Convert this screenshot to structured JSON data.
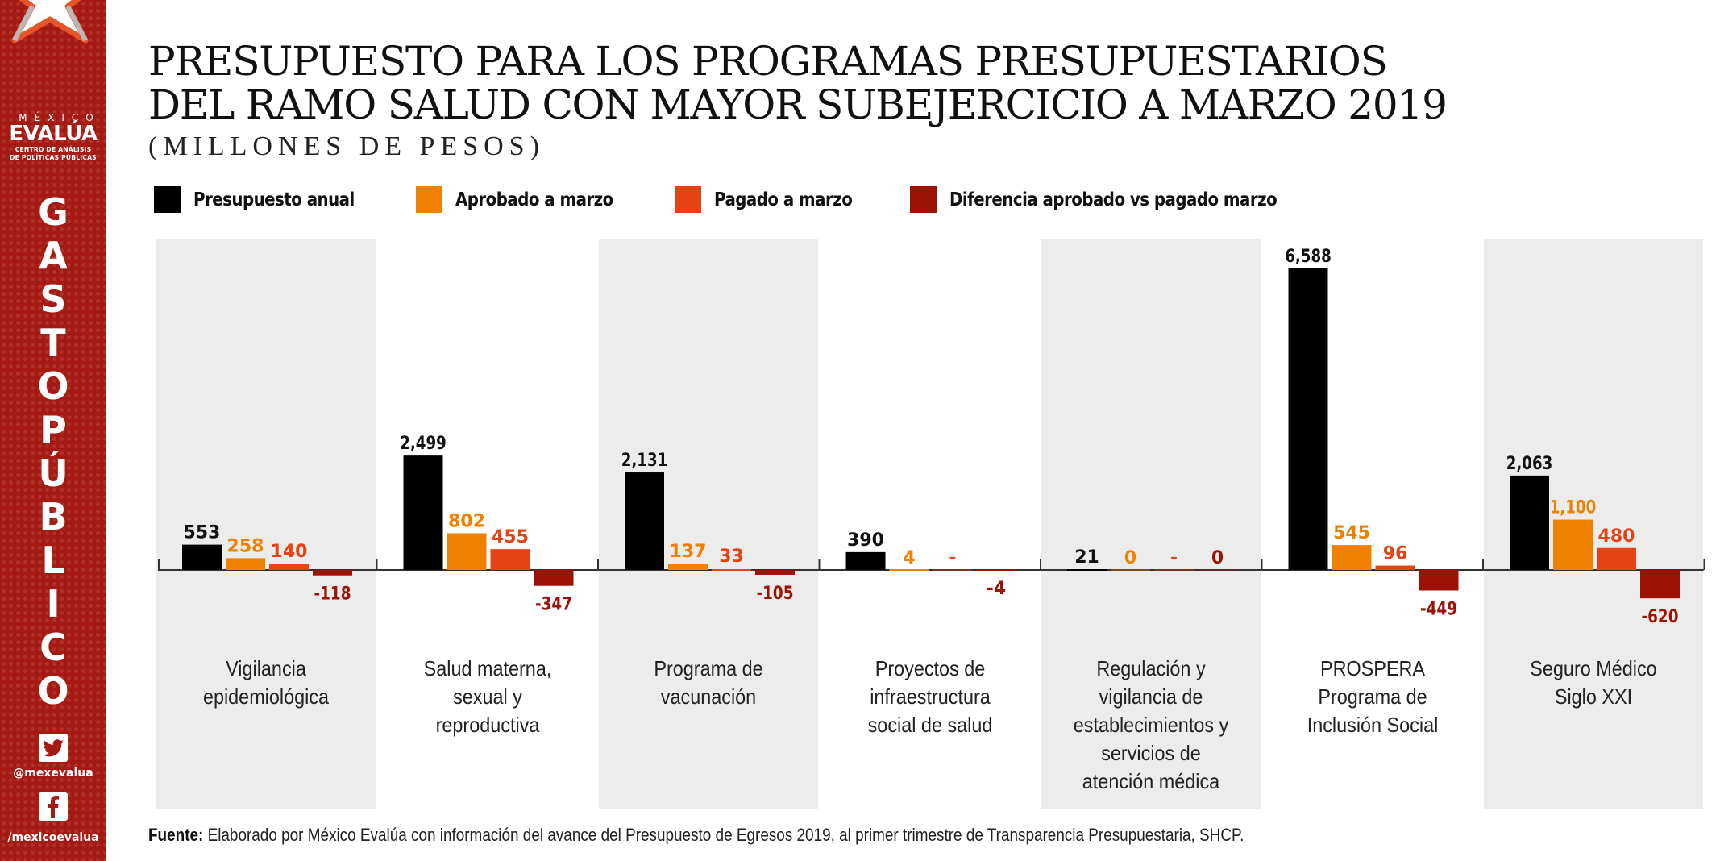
{
  "brand": {
    "top": "MÉXICO",
    "main": "EVALÚA",
    "sub_line1": "CENTRO DE ANÁLISIS",
    "sub_line2": "DE POLÍTICAS PÚBLICAS",
    "vertical_word": [
      "G",
      "A",
      "S",
      "T",
      "O",
      "P",
      "Ú",
      "B",
      "L",
      "I",
      "C",
      "O"
    ],
    "twitter_handle": "@mexevalua",
    "facebook_handle": "/mexicoevalua",
    "twitter_icon": "twitter-icon",
    "facebook_icon": "facebook-icon"
  },
  "colors": {
    "sidebar": "#a51a12",
    "panel": "#ececec",
    "presupuesto": "#000000",
    "aprobado": "#f08000",
    "pagado": "#e54314",
    "diferencia": "#9e1206"
  },
  "footer": {
    "label": "Fuente:",
    "text": " Elaborado por México Evalúa con información del avance del Presupuesto de Egresos 2019, al primer trimestre de Transparencia Presupuestaria, SHCP."
  },
  "chart_data": {
    "type": "bar",
    "title": "PRESUPUESTO PARA LOS PROGRAMAS PRESUPUESTARIOS",
    "title_line2": "DEL RAMO SALUD CON MAYOR SUBEJERCICIO A MARZO 2019",
    "subtitle": "(MILLONES DE PESOS)",
    "xlabel": "",
    "ylabel": "",
    "ylim": [
      -620,
      6588
    ],
    "grid": false,
    "legend_position": "top-left",
    "categories": [
      "Vigilancia\nepidemiológica",
      "Salud materna,\nsexual y\nreproductiva",
      "Programa de\nvacunación",
      "Proyectos de\ninfraestructura\nsocial de salud",
      "Regulación y\nvigilancia de\nestablecimientos y\nservicios de\natención médica",
      "PROSPERA\nPrograma de\nInclusión Social",
      "Seguro Médico\nSiglo XXI"
    ],
    "series": [
      {
        "name": "Presupuesto anual",
        "color": "#000000",
        "label_color": "#111111",
        "values": [
          553,
          2499,
          2131,
          390,
          21,
          6588,
          2063
        ],
        "labels": [
          "553",
          "2,499",
          "2,131",
          "390",
          "21",
          "6,588",
          "2,063"
        ]
      },
      {
        "name": "Aprobado a marzo",
        "color": "#f08000",
        "label_color": "#f08000",
        "values": [
          258,
          802,
          137,
          4,
          0,
          545,
          1100
        ],
        "labels": [
          "258",
          "802",
          "137",
          "4",
          "0",
          "545",
          "1,100"
        ]
      },
      {
        "name": "Pagado a marzo",
        "color": "#e54314",
        "label_color": "#e54314",
        "values": [
          140,
          455,
          33,
          0,
          0,
          96,
          480
        ],
        "labels": [
          "140",
          "455",
          "33",
          "-",
          "-",
          "96",
          "480"
        ]
      },
      {
        "name": "Diferencia aprobado vs pagado marzo",
        "color": "#9e1206",
        "label_color": "#9e1206",
        "values": [
          -118,
          -347,
          -105,
          -4,
          0,
          -449,
          -620
        ],
        "labels": [
          "-118",
          "-347",
          "-105",
          "-4",
          "0",
          "-449",
          "-620"
        ]
      }
    ]
  }
}
